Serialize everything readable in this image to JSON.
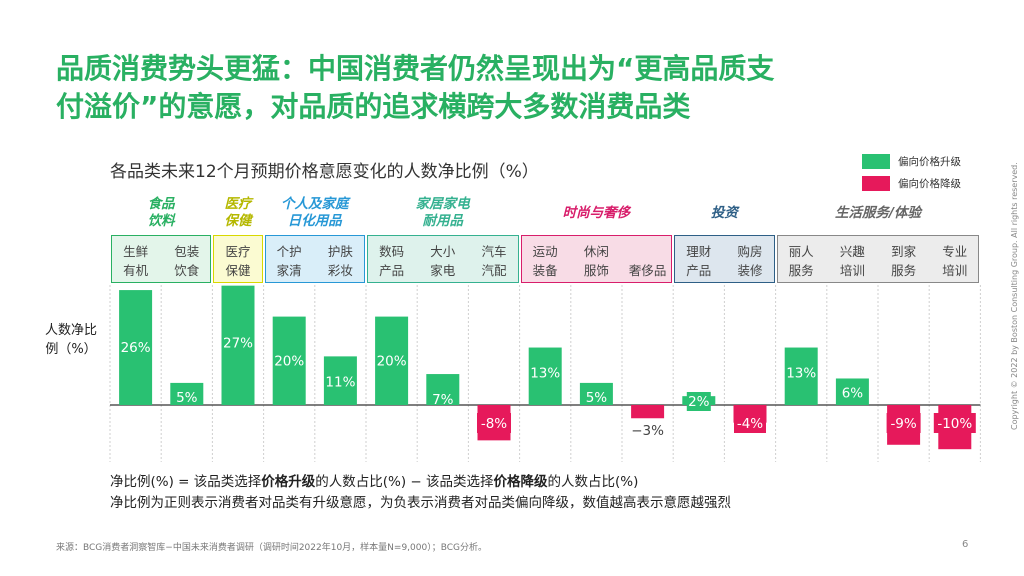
{
  "title": {
    "line1": "品质消费势头更猛：中国消费者仍然呈现出为“更高品质支",
    "line2": "付溢价”的意愿，对品质的追求横跨大多数消费品类"
  },
  "chart_data": {
    "type": "bar",
    "title": "各品类未来12个月预期价格意愿变化的人数净比例（%）",
    "ylabel": "人数净比例（%）",
    "legend": [
      {
        "name": "偏向价格升级",
        "color": "#29c172"
      },
      {
        "name": "偏向价格降级",
        "color": "#e6195b"
      }
    ],
    "legend_position": "top-right",
    "ylim": [
      -10,
      27
    ],
    "groups": [
      {
        "name": "食品饮料",
        "lines": [
          "食品",
          "饮料"
        ],
        "color": "#29b062",
        "bg": "#e3f5ea",
        "border": "#29b062",
        "sub": [
          "生鲜有机",
          "包装饮食"
        ]
      },
      {
        "name": "医疗保健",
        "lines": [
          "医疗",
          "保健"
        ],
        "color": "#b5b800",
        "bg": "#fbfbd2",
        "border": "#d8d800",
        "sub": [
          "医疗保健"
        ]
      },
      {
        "name": "个人及家庭日化用品",
        "lines": [
          "个人及家庭",
          "日化用品"
        ],
        "color": "#2798d6",
        "bg": "#d9eef9",
        "border": "#2798d6",
        "sub": [
          "个护家清",
          "护肤彩妆"
        ]
      },
      {
        "name": "家居家电耐用品",
        "lines": [
          "家居家电",
          "耐用品"
        ],
        "color": "#35b190",
        "bg": "#def2ec",
        "border": "#35b190",
        "sub": [
          "数码产品",
          "大小家电",
          "汽车汽配"
        ]
      },
      {
        "name": "时尚与奢侈",
        "lines": [
          "时尚与奢侈"
        ],
        "color": "#d81e6b",
        "bg": "#f8dce6",
        "border": "#d81e6b",
        "sub": [
          "运动装备",
          "休闲服饰",
          "奢侈品"
        ]
      },
      {
        "name": "投资",
        "lines": [
          "投资"
        ],
        "color": "#2e5f86",
        "bg": "#dde6ee",
        "border": "#2e5f86",
        "sub": [
          "理财产品",
          "购房装修"
        ]
      },
      {
        "name": "生活服务/体验",
        "lines": [
          "生活服务/体验"
        ],
        "color": "#666666",
        "bg": "#ececec",
        "border": "#888888",
        "sub": [
          "丽人服务",
          "兴趣培训",
          "到家服务",
          "专业培训"
        ]
      }
    ],
    "sub_labels": [
      [
        "生鲜",
        "有机"
      ],
      [
        "包装",
        "饮食"
      ],
      [
        "医疗",
        "保健"
      ],
      [
        "个护",
        "家清"
      ],
      [
        "护肤",
        "彩妆"
      ],
      [
        "数码",
        "产品"
      ],
      [
        "大小",
        "家电"
      ],
      [
        "汽车",
        "汽配"
      ],
      [
        "运动",
        "装备"
      ],
      [
        "休闲",
        "服饰"
      ],
      [
        "奢侈品"
      ],
      [
        "理财",
        "产品"
      ],
      [
        "购房",
        "装修"
      ],
      [
        "丽人",
        "服务"
      ],
      [
        "兴趣",
        "培训"
      ],
      [
        "到家",
        "服务"
      ],
      [
        "专业",
        "培训"
      ]
    ],
    "categories": [
      "生鲜有机",
      "包装饮食",
      "医疗保健",
      "个护家清",
      "护肤彩妆",
      "数码产品",
      "大小家电",
      "汽车汽配",
      "运动装备",
      "休闲服饰",
      "奢侈品",
      "理财产品",
      "购房装修",
      "丽人服务",
      "兴趣培训",
      "到家服务",
      "专业培训"
    ],
    "values": [
      26,
      5,
      27,
      20,
      11,
      20,
      7,
      -8,
      13,
      5,
      -3,
      2,
      -4,
      13,
      6,
      -9,
      -10
    ],
    "data_labels": [
      "26%",
      "5%",
      "27%",
      "20%",
      "11%",
      "20%",
      "7%",
      "-8%",
      "13%",
      "5%",
      "−3%",
      "2%",
      "-4%",
      "13%",
      "6%",
      "-9%",
      "-10%"
    ]
  },
  "notes": {
    "line1_a": "净比例(%) = 该品类选择",
    "line1_b": "价格升级",
    "line1_c": "的人数占比(%) − 该品类选择",
    "line1_d": "价格降级",
    "line1_e": "的人数占比(%)",
    "line2": "净比例为正则表示消费者对品类有升级意愿，为负表示消费者对品类偏向降级，数值越高表示意愿越强烈"
  },
  "source": "来源：BCG消费者洞察智库−中国未来消费者调研（调研时间2022年10月，样本量N=9,000）；BCG分析。",
  "page_number": "6",
  "copyright": "Copyright © 2022 by Boston Consulting Group. All rights reserved."
}
